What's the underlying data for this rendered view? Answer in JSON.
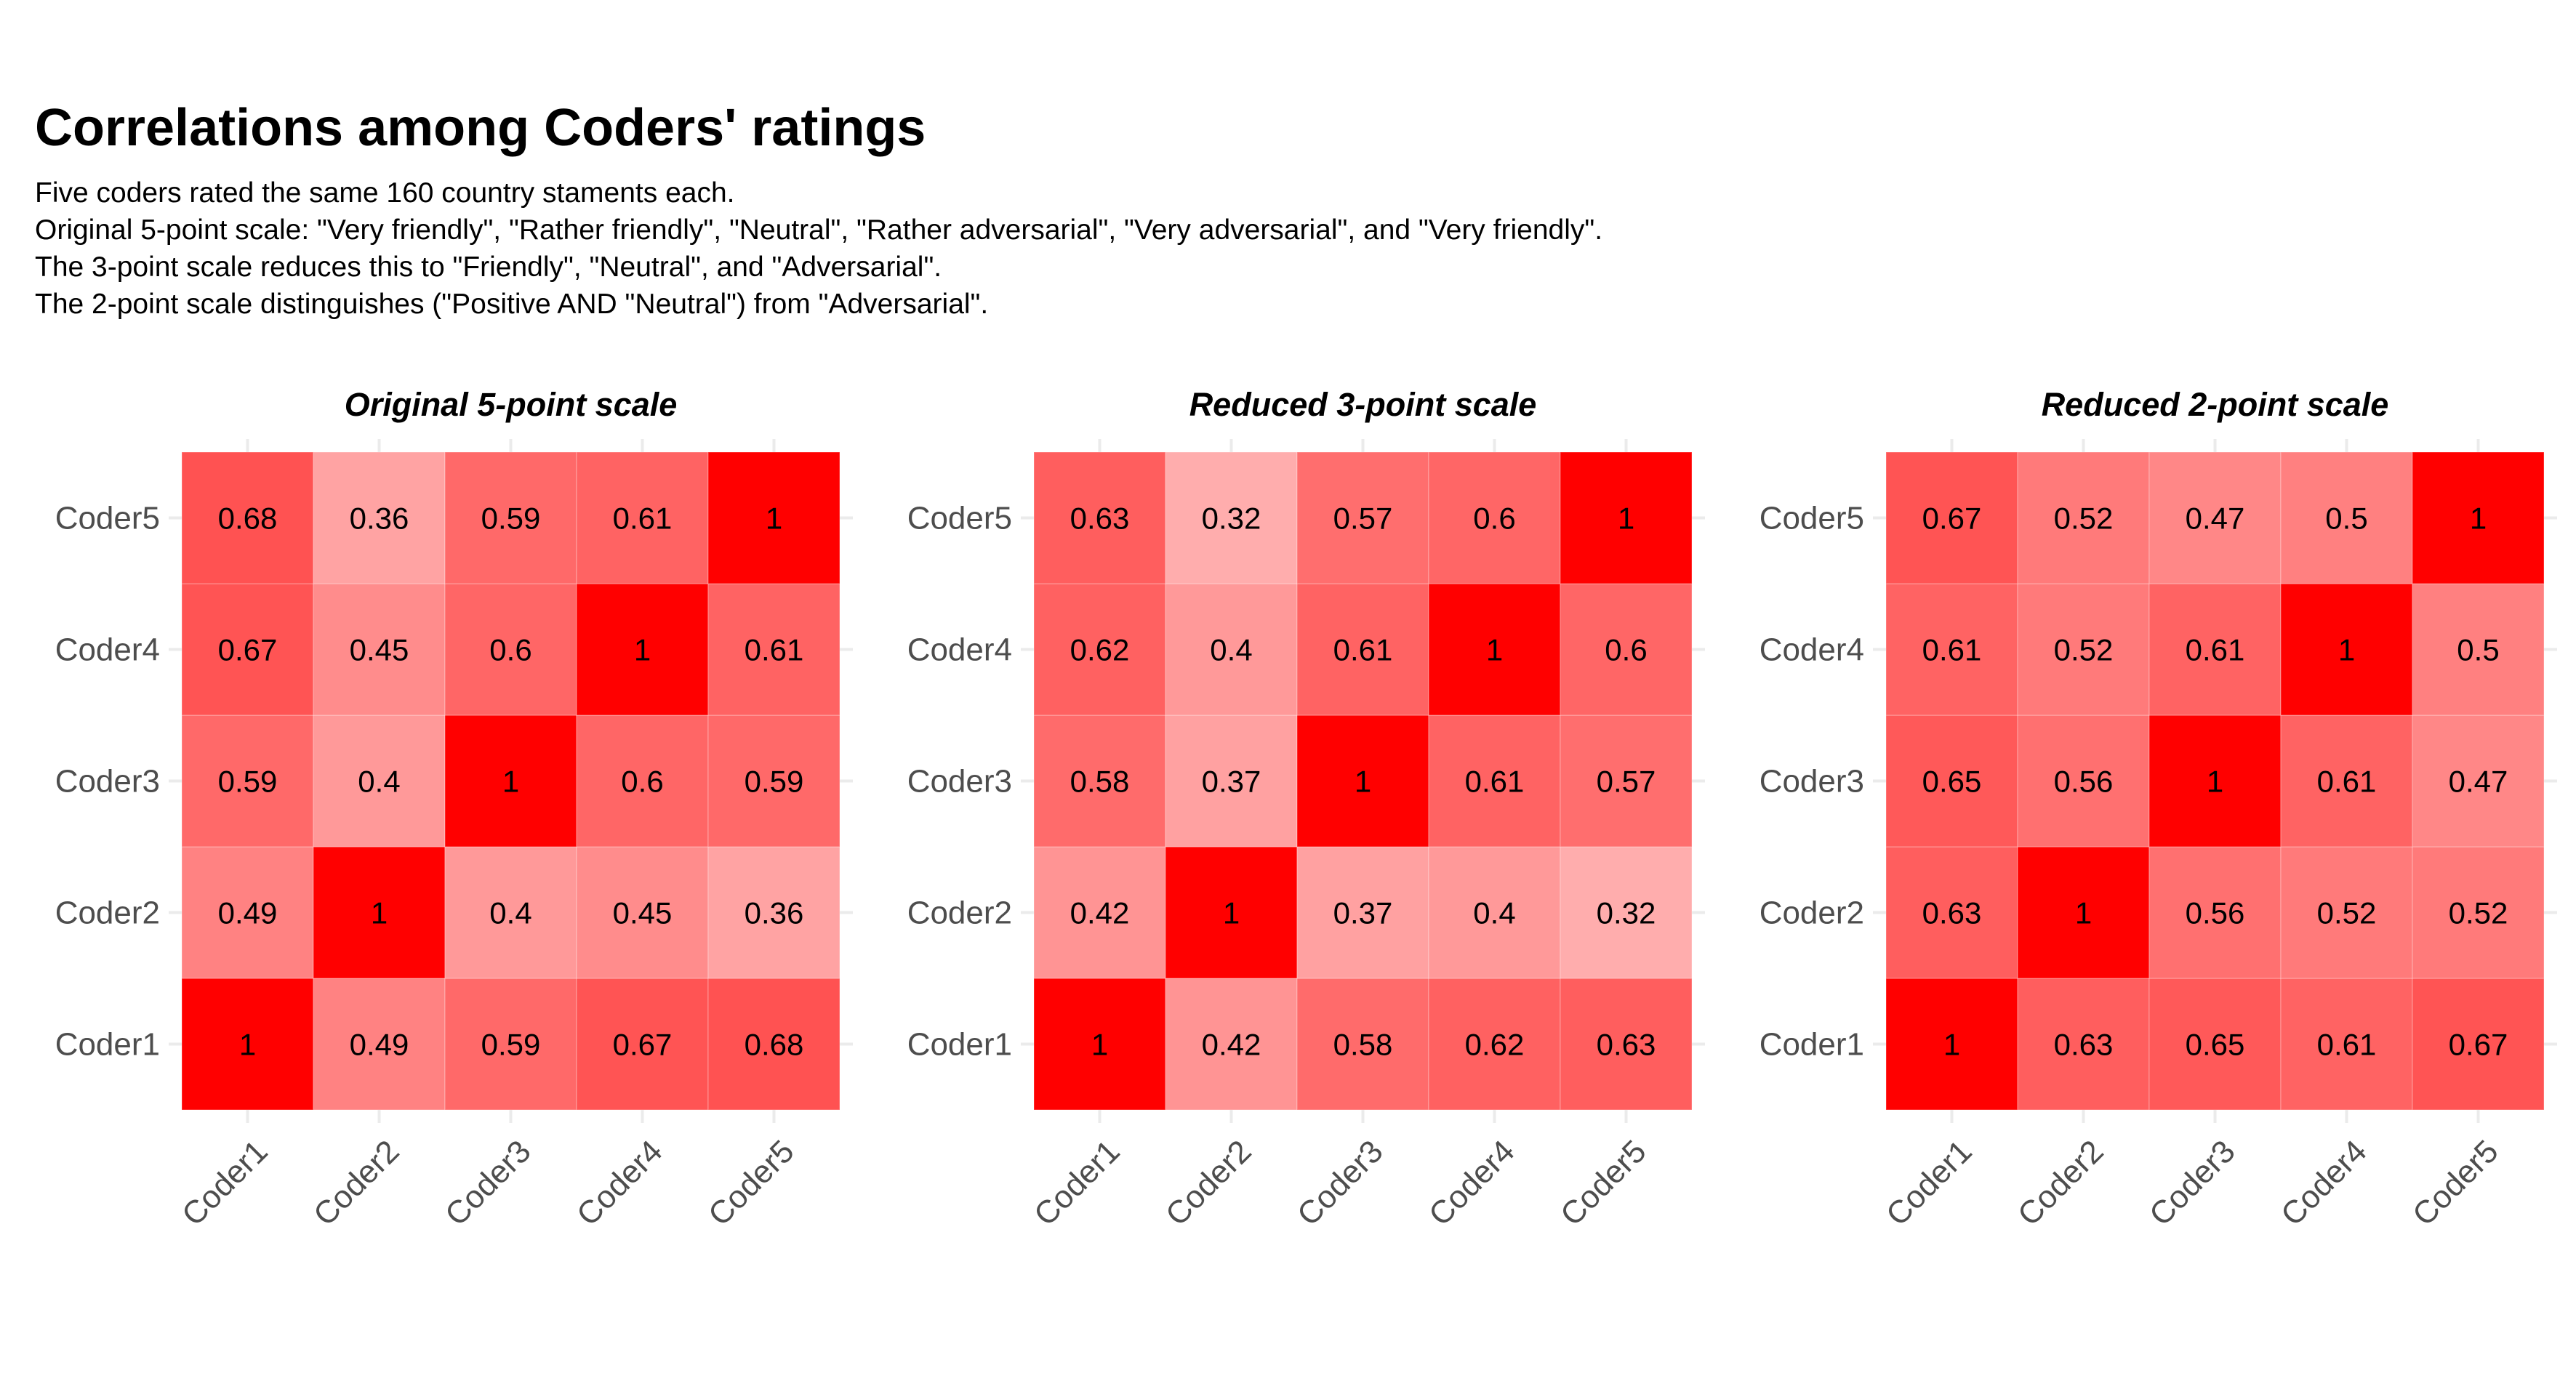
{
  "title": "Correlations among Coders' ratings",
  "subtitle": [
    "Five coders rated the same 160 country staments each.",
    "Original 5-point scale: \"Very friendly\", \"Rather friendly\", \"Neutral\", \"Rather adversarial\", \"Very adversarial\", and \"Very friendly\".",
    "The 3-point scale reduces this to \"Friendly\", \"Neutral\", and \"Adversarial\".",
    "The 2-point scale distinguishes (\"Positive AND \"Neutral\") from \"Adversarial\"."
  ],
  "colors": {
    "low": "#ffffff",
    "high": "#ff0000",
    "panel_grid": "#ebebeb",
    "axis_text": "#4d4d4d"
  },
  "chart_data": [
    {
      "type": "heatmap",
      "title": "Original 5-point scale",
      "x": [
        "Coder1",
        "Coder2",
        "Coder3",
        "Coder4",
        "Coder5"
      ],
      "y": [
        "Coder1",
        "Coder2",
        "Coder3",
        "Coder4",
        "Coder5"
      ],
      "values": [
        [
          1,
          0.49,
          0.59,
          0.67,
          0.68
        ],
        [
          0.49,
          1,
          0.4,
          0.45,
          0.36
        ],
        [
          0.59,
          0.4,
          1,
          0.6,
          0.59
        ],
        [
          0.67,
          0.45,
          0.6,
          1,
          0.61
        ],
        [
          0.68,
          0.36,
          0.59,
          0.61,
          1
        ]
      ],
      "labels": [
        [
          "1",
          "0.49",
          "0.59",
          "0.67",
          "0.68"
        ],
        [
          "0.49",
          "1",
          "0.4",
          "0.45",
          "0.36"
        ],
        [
          "0.59",
          "0.4",
          "1",
          "0.6",
          "0.59"
        ],
        [
          "0.67",
          "0.45",
          "0.6",
          "1",
          "0.61"
        ],
        [
          "0.68",
          "0.36",
          "0.59",
          "0.61",
          "1"
        ]
      ]
    },
    {
      "type": "heatmap",
      "title": "Reduced 3-point scale",
      "x": [
        "Coder1",
        "Coder2",
        "Coder3",
        "Coder4",
        "Coder5"
      ],
      "y": [
        "Coder1",
        "Coder2",
        "Coder3",
        "Coder4",
        "Coder5"
      ],
      "values": [
        [
          1,
          0.42,
          0.58,
          0.62,
          0.63
        ],
        [
          0.42,
          1,
          0.37,
          0.4,
          0.32
        ],
        [
          0.58,
          0.37,
          1,
          0.61,
          0.57
        ],
        [
          0.62,
          0.4,
          0.61,
          1,
          0.6
        ],
        [
          0.63,
          0.32,
          0.57,
          0.6,
          1
        ]
      ],
      "labels": [
        [
          "1",
          "0.42",
          "0.58",
          "0.62",
          "0.63"
        ],
        [
          "0.42",
          "1",
          "0.37",
          "0.4",
          "0.32"
        ],
        [
          "0.58",
          "0.37",
          "1",
          "0.61",
          "0.57"
        ],
        [
          "0.62",
          "0.4",
          "0.61",
          "1",
          "0.6"
        ],
        [
          "0.63",
          "0.32",
          "0.57",
          "0.6",
          "1"
        ]
      ]
    },
    {
      "type": "heatmap",
      "title": "Reduced 2-point scale",
      "x": [
        "Coder1",
        "Coder2",
        "Coder3",
        "Coder4",
        "Coder5"
      ],
      "y": [
        "Coder1",
        "Coder2",
        "Coder3",
        "Coder4",
        "Coder5"
      ],
      "values": [
        [
          1,
          0.63,
          0.65,
          0.61,
          0.67
        ],
        [
          0.63,
          1,
          0.56,
          0.52,
          0.52
        ],
        [
          0.65,
          0.56,
          1,
          0.61,
          0.47
        ],
        [
          0.61,
          0.52,
          0.61,
          1,
          0.5
        ],
        [
          0.67,
          0.52,
          0.47,
          0.5,
          1
        ]
      ],
      "labels": [
        [
          "1",
          "0.63",
          "0.65",
          "0.61",
          "0.67"
        ],
        [
          "0.63",
          "1",
          "0.56",
          "0.52",
          "0.52"
        ],
        [
          "0.65",
          "0.56",
          "1",
          "0.61",
          "0.47"
        ],
        [
          "0.61",
          "0.52",
          "0.61",
          "1",
          "0.5"
        ],
        [
          "0.67",
          "0.52",
          "0.47",
          "0.5",
          "1"
        ]
      ]
    }
  ]
}
